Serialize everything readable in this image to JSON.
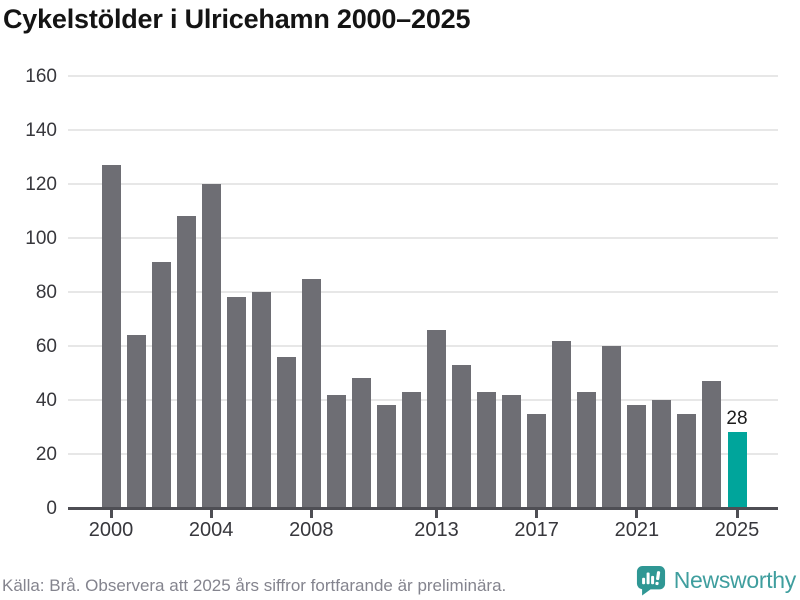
{
  "title": "Cykelstölder i Ulricehamn 2000–2025",
  "chart_data": {
    "type": "bar",
    "title": "Cykelstölder i Ulricehamn 2000–2025",
    "x": [
      2000,
      2001,
      2002,
      2003,
      2004,
      2005,
      2006,
      2007,
      2008,
      2009,
      2010,
      2011,
      2012,
      2013,
      2014,
      2015,
      2016,
      2017,
      2018,
      2019,
      2020,
      2021,
      2022,
      2023,
      2024,
      2025
    ],
    "values": [
      127,
      64,
      91,
      108,
      120,
      78,
      80,
      56,
      85,
      42,
      48,
      38,
      43,
      66,
      53,
      43,
      42,
      35,
      62,
      43,
      60,
      38,
      40,
      35,
      47,
      28
    ],
    "xlabel": "",
    "ylabel": "",
    "ylim": [
      0,
      160
    ],
    "ytick_labels": [
      "0",
      "20",
      "40",
      "60",
      "80",
      "100",
      "120",
      "140",
      "160"
    ],
    "xtick_years": [
      2000,
      2004,
      2008,
      2013,
      2017,
      2021,
      2025
    ],
    "xtick_labels": [
      "2000",
      "2004",
      "2008",
      "2013",
      "2017",
      "2021",
      "2025"
    ],
    "grid": true,
    "legend": "none",
    "bar_color": "#6e6e74",
    "highlight_color": "#00a59b",
    "highlight_year": 2025,
    "value_labels": [
      {
        "year": 2025,
        "text": "28"
      }
    ]
  },
  "footer": {
    "source_note": "Källa: Brå. Observera att 2025 års siffror fortfarande är preliminära."
  },
  "branding": {
    "logo_text": "Newsworthy",
    "logo_text_color": "#3f9e9e",
    "icon_color": "#2f9794",
    "icon_name": "newsworthy-chart-bubble-icon"
  }
}
